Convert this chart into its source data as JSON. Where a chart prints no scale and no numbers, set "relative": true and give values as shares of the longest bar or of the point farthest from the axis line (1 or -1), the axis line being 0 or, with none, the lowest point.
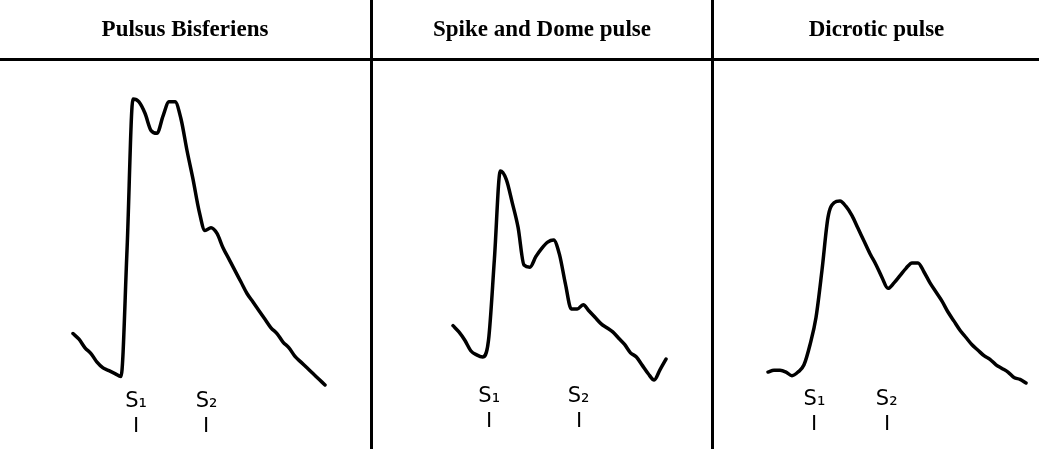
{
  "chart_data": [
    {
      "type": "line",
      "title": "Pulsus Bisferiens",
      "relative": true,
      "categories": [
        null,
        null,
        null,
        null,
        null,
        null,
        null,
        null,
        null,
        null,
        null,
        null,
        null,
        null,
        null,
        null,
        null,
        null,
        null,
        null,
        null,
        null,
        null,
        null,
        null,
        null,
        null,
        null,
        null,
        null,
        null,
        null,
        null,
        null,
        null,
        null,
        null,
        null,
        null,
        null,
        null,
        null,
        null
      ],
      "annotations": [
        "S₁",
        "S₂"
      ],
      "series": [
        {
          "color": "#000000",
          "values": [
            0.18,
            0.16,
            0.13,
            0.11,
            0.08,
            0.06,
            0.05,
            0.04,
            0.03,
            0.47,
            1.0,
            0.99,
            0.95,
            0.89,
            0.88,
            0.94,
            0.99,
            0.99,
            0.93,
            0.82,
            0.72,
            0.61,
            0.54,
            0.55,
            0.53,
            0.48,
            0.44,
            0.4,
            0.36,
            0.32,
            0.29,
            0.26,
            0.23,
            0.2,
            0.18,
            0.15,
            0.13,
            0.1,
            0.08,
            0.06,
            0.04,
            0.02,
            0
          ]
        }
      ]
    },
    {
      "type": "line",
      "title": "Spike and Dome pulse",
      "relative": true,
      "categories": [
        null,
        null,
        null,
        null,
        null,
        null,
        null,
        null,
        null,
        null,
        null,
        null,
        null,
        null,
        null,
        null,
        null,
        null,
        null,
        null,
        null,
        null,
        null,
        null,
        null,
        null,
        null,
        null,
        null,
        null,
        null,
        null,
        null,
        null,
        null,
        null,
        null
      ],
      "annotations": [
        "S₁",
        "S₂"
      ],
      "series": [
        {
          "color": "#000000",
          "values": [
            0.26,
            0.23,
            0.19,
            0.14,
            0.12,
            0.11,
            0.19,
            0.58,
            1.0,
            0.96,
            0.85,
            0.73,
            0.55,
            0.54,
            0.59,
            0.63,
            0.66,
            0.67,
            0.6,
            0.46,
            0.34,
            0.34,
            0.36,
            0.33,
            0.3,
            0.27,
            0.25,
            0.23,
            0.2,
            0.17,
            0.13,
            0.11,
            0.07,
            0.03,
            0,
            0.05,
            0.1
          ]
        }
      ]
    },
    {
      "type": "line",
      "title": "Dicrotic pulse",
      "relative": true,
      "categories": [
        null,
        null,
        null,
        null,
        null,
        null,
        null,
        null,
        null,
        null,
        null,
        null,
        null,
        null,
        null,
        null,
        null,
        null,
        null,
        null,
        null,
        null,
        null,
        null,
        null,
        null,
        null,
        null,
        null,
        null,
        null,
        null,
        null,
        null,
        null,
        null,
        null,
        null,
        null,
        null,
        null,
        null,
        null,
        null
      ],
      "annotations": [
        "S₁",
        "S₂"
      ],
      "series": [
        {
          "color": "#000000",
          "values": [
            0.06,
            0.07,
            0.07,
            0.06,
            0.04,
            0.06,
            0.1,
            0.21,
            0.36,
            0.62,
            0.91,
            0.99,
            1.0,
            0.97,
            0.92,
            0.85,
            0.78,
            0.71,
            0.65,
            0.58,
            0.52,
            0.55,
            0.59,
            0.63,
            0.66,
            0.66,
            0.61,
            0.55,
            0.5,
            0.45,
            0.39,
            0.34,
            0.29,
            0.25,
            0.21,
            0.18,
            0.15,
            0.13,
            0.1,
            0.08,
            0.06,
            0.03,
            0.02,
            0
          ]
        }
      ]
    }
  ]
}
